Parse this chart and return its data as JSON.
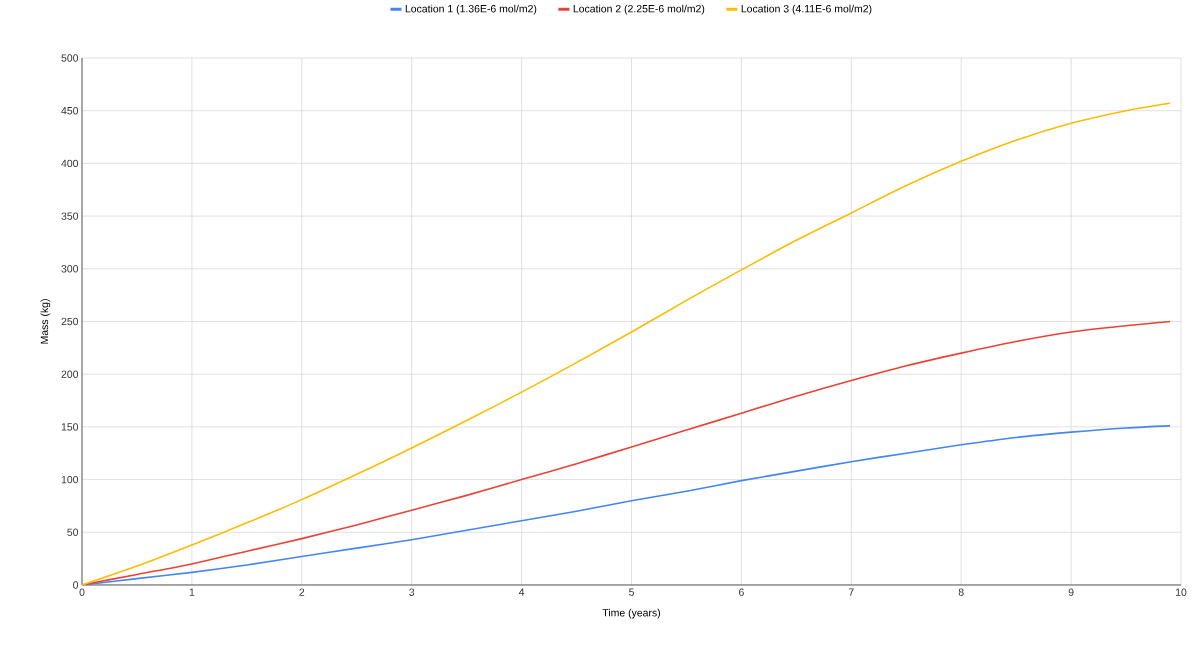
{
  "chart_data": {
    "type": "line",
    "xlabel": "Time (years)",
    "ylabel": "Mass (kg)",
    "x": [
      0,
      0.5,
      1,
      1.5,
      2,
      2.5,
      3,
      3.5,
      4,
      4.5,
      5,
      5.5,
      6,
      6.5,
      7,
      7.5,
      8,
      8.5,
      9,
      9.5,
      9.9
    ],
    "series": [
      {
        "name": "Location 1 (1.36E-6 mol/m2)",
        "color": "#4285f4",
        "values": [
          0,
          6,
          12,
          19,
          27,
          35,
          43,
          52,
          61,
          70,
          80,
          89,
          99,
          108,
          117,
          125,
          133,
          140,
          145,
          149,
          151
        ]
      },
      {
        "name": "Location 2 (2.25E-6 mol/m2)",
        "color": "#ea4335",
        "values": [
          0,
          10,
          20,
          32,
          44,
          57,
          71,
          85,
          100,
          115,
          131,
          147,
          163,
          179,
          194,
          208,
          220,
          231,
          240,
          246,
          250
        ]
      },
      {
        "name": "Location 3 (4.11E-6 mol/m2)",
        "color": "#fbbc04",
        "values": [
          0,
          18,
          38,
          59,
          81,
          105,
          130,
          156,
          183,
          211,
          240,
          270,
          299,
          327,
          353,
          379,
          402,
          422,
          438,
          450,
          457
        ]
      }
    ],
    "xlim": [
      0,
      10
    ],
    "xticks": [
      0,
      1,
      2,
      3,
      4,
      5,
      6,
      7,
      8,
      9,
      10
    ],
    "ylim": [
      0,
      500
    ],
    "yticks": [
      0,
      50,
      100,
      150,
      200,
      250,
      300,
      350,
      400,
      450,
      500
    ],
    "grid": true,
    "legend": "top",
    "marker": "none",
    "line_style": "solid"
  }
}
